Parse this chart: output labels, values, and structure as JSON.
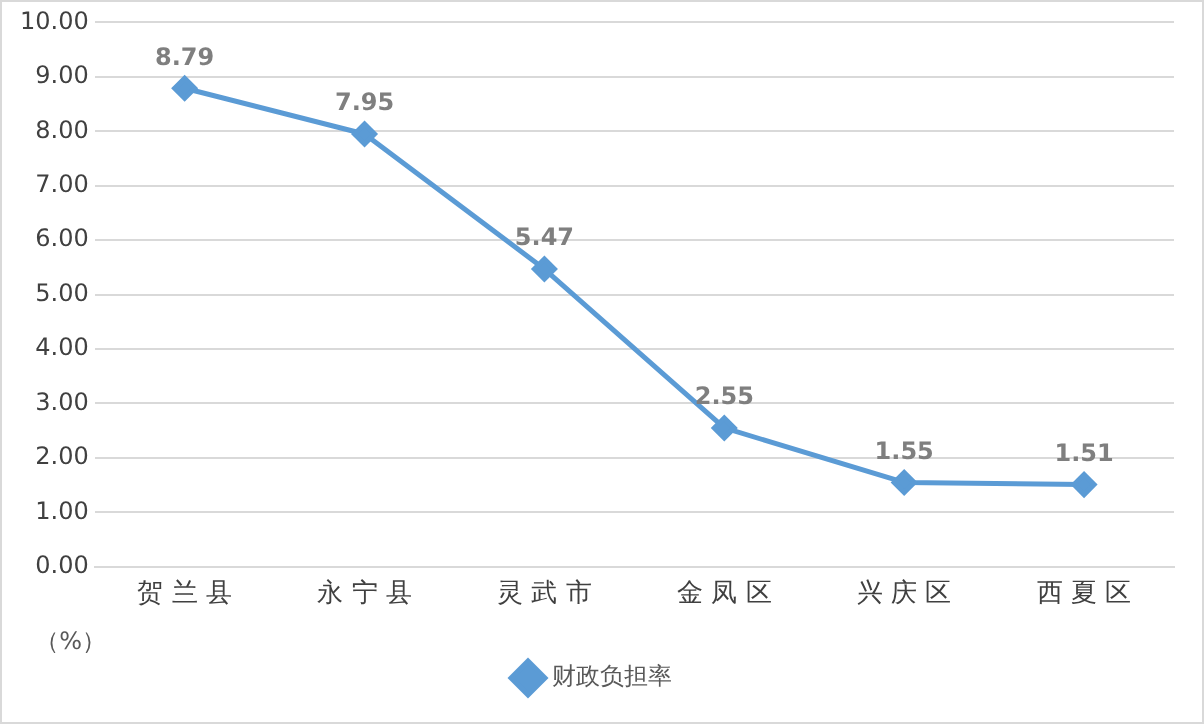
{
  "chart_data": {
    "type": "line",
    "ylabel": "（%）",
    "categories": [
      "贺 兰 县",
      "永 宁 县",
      "灵 武 市",
      "金 凤 区",
      "兴 庆 区",
      "西 夏 区"
    ],
    "series": [
      {
        "name": "财政负担率",
        "color": "#5b9bd5",
        "values": [
          8.79,
          7.95,
          5.47,
          2.55,
          1.55,
          1.51
        ]
      }
    ],
    "ylim": [
      0,
      10
    ],
    "yticks": [
      {
        "value": 0,
        "label": "0.00"
      },
      {
        "value": 1,
        "label": "1.00"
      },
      {
        "value": 2,
        "label": "2.00"
      },
      {
        "value": 3,
        "label": "3.00"
      },
      {
        "value": 4,
        "label": "4.00"
      },
      {
        "value": 5,
        "label": "5.00"
      },
      {
        "value": 6,
        "label": "6.00"
      },
      {
        "value": 7,
        "label": "7.00"
      },
      {
        "value": 8,
        "label": "8.00"
      },
      {
        "value": 9,
        "label": "9.00"
      },
      {
        "value": 10,
        "label": "10.00"
      }
    ],
    "grid": "y",
    "legend": "bottom",
    "marker": "diamond",
    "line_style": "solid",
    "data_labels": true
  }
}
